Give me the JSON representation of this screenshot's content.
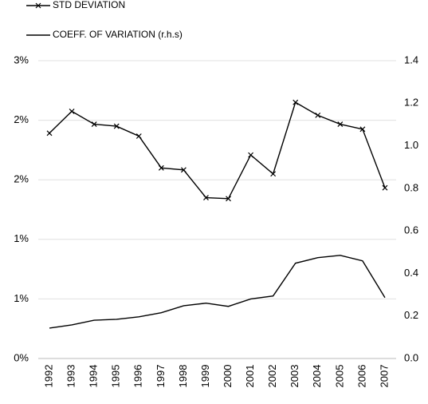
{
  "chart_data": {
    "type": "line",
    "categories": [
      "1992",
      "1993",
      "1994",
      "1995",
      "1996",
      "1997",
      "1998",
      "1999",
      "2000",
      "2001",
      "2002",
      "2003",
      "2004",
      "2005",
      "2006",
      "2007"
    ],
    "series": [
      {
        "name": "STD DEVIATION",
        "color": "#000000",
        "marker": "x",
        "values": [
          2.27,
          2.49,
          2.36,
          2.34,
          2.24,
          1.92,
          1.9,
          1.62,
          1.61,
          2.05,
          1.86,
          2.58,
          2.45,
          2.36,
          2.31,
          1.72
        ]
      },
      {
        "name": "COEFF. OF VARIATION (r.h.s)",
        "color": "#000000",
        "axis": "y2",
        "values": [
          0.143,
          0.158,
          0.18,
          0.184,
          0.196,
          0.215,
          0.248,
          0.26,
          0.245,
          0.28,
          0.294,
          0.448,
          0.474,
          0.485,
          0.459,
          0.286
        ]
      }
    ],
    "ylim": [
      0,
      3
    ],
    "yticks": [
      {
        "value": 0,
        "label": "0%"
      },
      {
        "value": 0.6,
        "label": "1%"
      },
      {
        "value": 1.2,
        "label": "1%"
      },
      {
        "value": 1.8,
        "label": "2%"
      },
      {
        "value": 2.4,
        "label": "2%"
      },
      {
        "value": 3,
        "label": "3%"
      }
    ],
    "y2lim": [
      0,
      1.4
    ],
    "y2ticks": [
      {
        "value": 0,
        "label": "0.0"
      },
      0.2,
      0.4,
      0.6,
      0.8,
      {
        "value": 1,
        "label": "1.0"
      },
      1.2,
      1.4
    ],
    "grid": true
  }
}
